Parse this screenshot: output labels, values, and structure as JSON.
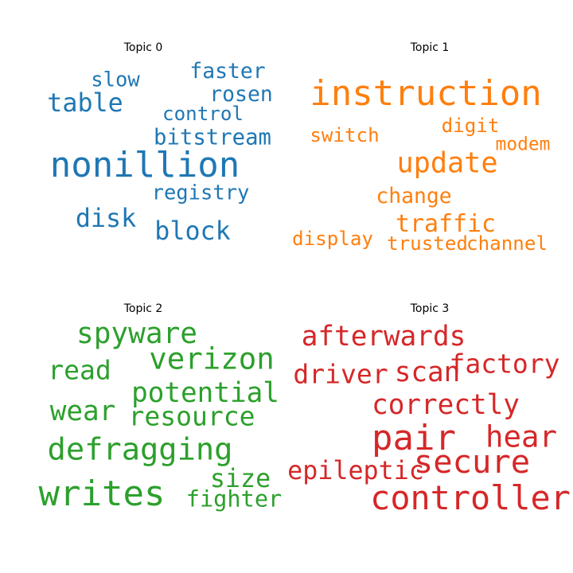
{
  "chart_data": [
    {
      "type": "wordcloud",
      "title": "Topic 0",
      "color": "#1f77b4",
      "words": [
        {
          "text": "nonillion",
          "weight": 1.0
        },
        {
          "text": "table",
          "weight": 0.72
        },
        {
          "text": "disk",
          "weight": 0.72
        },
        {
          "text": "block",
          "weight": 0.72
        },
        {
          "text": "bitstream",
          "weight": 0.62
        },
        {
          "text": "faster",
          "weight": 0.6
        },
        {
          "text": "rosen",
          "weight": 0.6
        },
        {
          "text": "slow",
          "weight": 0.58
        },
        {
          "text": "registry",
          "weight": 0.58
        },
        {
          "text": "control",
          "weight": 0.55
        }
      ]
    },
    {
      "type": "wordcloud",
      "title": "Topic 1",
      "color": "#ff7f0e",
      "words": [
        {
          "text": "instruction",
          "weight": 1.0
        },
        {
          "text": "update",
          "weight": 0.8
        },
        {
          "text": "traffic",
          "weight": 0.68
        },
        {
          "text": "change",
          "weight": 0.6
        },
        {
          "text": "switch",
          "weight": 0.55
        },
        {
          "text": "digit",
          "weight": 0.55
        },
        {
          "text": "display",
          "weight": 0.55
        },
        {
          "text": "trusted",
          "weight": 0.55
        },
        {
          "text": "channel",
          "weight": 0.55
        },
        {
          "text": "modem",
          "weight": 0.52
        }
      ]
    },
    {
      "type": "wordcloud",
      "title": "Topic 2",
      "color": "#2ca02c",
      "words": [
        {
          "text": "writes",
          "weight": 1.0
        },
        {
          "text": "defragging",
          "weight": 0.88
        },
        {
          "text": "verizon",
          "weight": 0.85
        },
        {
          "text": "spyware",
          "weight": 0.82
        },
        {
          "text": "potential",
          "weight": 0.78
        },
        {
          "text": "wear",
          "weight": 0.78
        },
        {
          "text": "resource",
          "weight": 0.75
        },
        {
          "text": "read",
          "weight": 0.75
        },
        {
          "text": "size",
          "weight": 0.72
        },
        {
          "text": "fighter",
          "weight": 0.65
        }
      ]
    },
    {
      "type": "wordcloud",
      "title": "Topic 3",
      "color": "#d62728",
      "words": [
        {
          "text": "pair",
          "weight": 1.0
        },
        {
          "text": "controller",
          "weight": 0.95
        },
        {
          "text": "secure",
          "weight": 0.92
        },
        {
          "text": "hear",
          "weight": 0.85
        },
        {
          "text": "correctly",
          "weight": 0.78
        },
        {
          "text": "afterwards",
          "weight": 0.78
        },
        {
          "text": "scan",
          "weight": 0.78
        },
        {
          "text": "driver",
          "weight": 0.75
        },
        {
          "text": "factory",
          "weight": 0.75
        },
        {
          "text": "epileptic",
          "weight": 0.72
        }
      ]
    }
  ]
}
